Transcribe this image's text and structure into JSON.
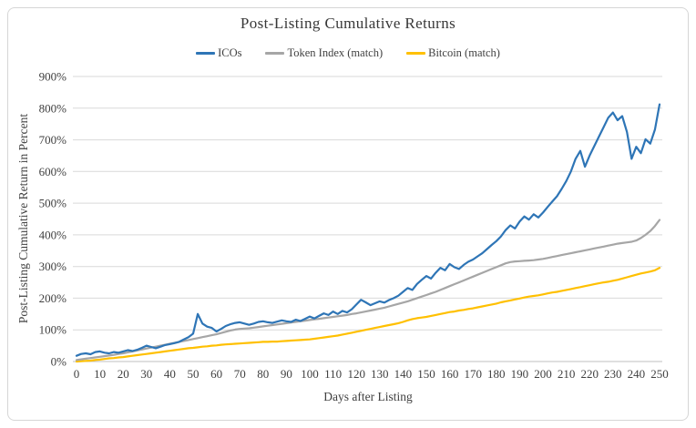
{
  "chart_data": {
    "type": "line",
    "title": "Post-Listing Cumulative Returns",
    "xlabel": "Days after Listing",
    "ylabel": "Post-Listing Cumulative Return in Percent",
    "xlim": [
      0,
      250
    ],
    "ylim": [
      0,
      900
    ],
    "grid": "horizontal-only",
    "legend_position": "top-center",
    "colors": {
      "icos": "#2e75b6",
      "token_index": "#a6a6a6",
      "bitcoin": "#ffc000",
      "gridline": "#d9d9d9",
      "axis_line": "#bfbfbf",
      "text": "#404040",
      "frame_border": "#d6d6d6"
    },
    "x_ticks": {
      "values": [
        0,
        10,
        20,
        30,
        40,
        50,
        60,
        70,
        80,
        90,
        100,
        110,
        120,
        130,
        140,
        150,
        160,
        170,
        180,
        190,
        200,
        210,
        220,
        230,
        240,
        250
      ],
      "labels": [
        "0",
        "10",
        "20",
        "30",
        "40",
        "50",
        "60",
        "70",
        "80",
        "90",
        "100",
        "110",
        "120",
        "130",
        "140",
        "150",
        "160",
        "170",
        "180",
        "190",
        "200",
        "210",
        "220",
        "230",
        "240",
        "250"
      ]
    },
    "y_ticks": {
      "values": [
        0,
        100,
        200,
        300,
        400,
        500,
        600,
        700,
        800,
        900
      ],
      "labels": [
        "0%",
        "100%",
        "200%",
        "300%",
        "400%",
        "500%",
        "600%",
        "700%",
        "800%",
        "900%"
      ]
    },
    "x": [
      0,
      2,
      4,
      6,
      8,
      10,
      12,
      14,
      16,
      18,
      20,
      22,
      24,
      26,
      28,
      30,
      32,
      34,
      36,
      38,
      40,
      42,
      44,
      46,
      48,
      50,
      52,
      54,
      56,
      58,
      60,
      62,
      64,
      66,
      68,
      70,
      72,
      74,
      76,
      78,
      80,
      82,
      84,
      86,
      88,
      90,
      92,
      94,
      96,
      98,
      100,
      102,
      104,
      106,
      108,
      110,
      112,
      114,
      116,
      118,
      120,
      122,
      124,
      126,
      128,
      130,
      132,
      134,
      136,
      138,
      140,
      142,
      144,
      146,
      148,
      150,
      152,
      154,
      156,
      158,
      160,
      162,
      164,
      166,
      168,
      170,
      172,
      174,
      176,
      178,
      180,
      182,
      184,
      186,
      188,
      190,
      192,
      194,
      196,
      198,
      200,
      202,
      204,
      206,
      208,
      210,
      212,
      214,
      216,
      218,
      220,
      222,
      224,
      226,
      228,
      230,
      232,
      234,
      236,
      238,
      240,
      242,
      244,
      246,
      248,
      250
    ],
    "series": [
      {
        "id": "icos",
        "name": "ICOs",
        "color": "#2e75b6",
        "values": [
          18,
          24,
          26,
          23,
          30,
          32,
          28,
          26,
          30,
          28,
          32,
          36,
          33,
          37,
          43,
          50,
          46,
          42,
          47,
          52,
          55,
          58,
          62,
          70,
          77,
          88,
          150,
          120,
          110,
          106,
          95,
          103,
          112,
          118,
          122,
          124,
          120,
          116,
          120,
          125,
          127,
          124,
          122,
          126,
          130,
          127,
          125,
          132,
          128,
          135,
          142,
          136,
          144,
          152,
          147,
          158,
          150,
          160,
          155,
          165,
          180,
          195,
          187,
          178,
          184,
          190,
          186,
          194,
          200,
          208,
          220,
          232,
          226,
          245,
          258,
          270,
          262,
          280,
          296,
          288,
          308,
          298,
          292,
          305,
          315,
          322,
          332,
          342,
          355,
          368,
          380,
          395,
          415,
          430,
          420,
          442,
          458,
          448,
          465,
          455,
          470,
          488,
          505,
          522,
          545,
          570,
          600,
          640,
          665,
          615,
          650,
          680,
          710,
          740,
          770,
          786,
          762,
          775,
          725,
          640,
          678,
          658,
          702,
          688,
          732,
          812
        ]
      },
      {
        "id": "token-index",
        "name": "Token Index (match)",
        "color": "#a6a6a6",
        "values": [
          5,
          7,
          9,
          11,
          13,
          15,
          17,
          19,
          21,
          24,
          26,
          29,
          32,
          35,
          38,
          41,
          44,
          47,
          50,
          53,
          56,
          59,
          62,
          65,
          68,
          71,
          74,
          77,
          80,
          83,
          86,
          90,
          94,
          98,
          101,
          103,
          104,
          105,
          107,
          109,
          111,
          113,
          115,
          117,
          119,
          121,
          123,
          125,
          127,
          129,
          131,
          133,
          135,
          137,
          139,
          141,
          143,
          145,
          147,
          150,
          152,
          155,
          158,
          161,
          164,
          167,
          170,
          174,
          178,
          182,
          186,
          190,
          195,
          200,
          205,
          210,
          215,
          220,
          226,
          232,
          238,
          244,
          250,
          256,
          262,
          268,
          274,
          280,
          286,
          292,
          298,
          304,
          310,
          314,
          316,
          317,
          318,
          319,
          320,
          322,
          324,
          327,
          330,
          333,
          336,
          339,
          342,
          345,
          348,
          351,
          354,
          357,
          360,
          363,
          366,
          369,
          372,
          374,
          376,
          378,
          382,
          390,
          400,
          412,
          428,
          447
        ]
      },
      {
        "id": "bitcoin",
        "name": "Bitcoin (match)",
        "color": "#ffc000",
        "values": [
          0,
          1,
          2,
          3,
          5,
          6,
          8,
          10,
          11,
          13,
          14,
          16,
          18,
          20,
          22,
          24,
          26,
          28,
          30,
          32,
          34,
          36,
          38,
          40,
          42,
          43,
          45,
          47,
          48,
          50,
          51,
          53,
          54,
          55,
          56,
          57,
          58,
          59,
          60,
          61,
          62,
          62,
          63,
          63,
          64,
          65,
          66,
          67,
          68,
          69,
          70,
          72,
          74,
          76,
          78,
          80,
          82,
          85,
          88,
          91,
          94,
          97,
          100,
          103,
          106,
          109,
          112,
          115,
          118,
          121,
          125,
          130,
          134,
          137,
          139,
          141,
          144,
          147,
          150,
          153,
          156,
          158,
          161,
          163,
          166,
          168,
          171,
          174,
          177,
          180,
          183,
          187,
          190,
          193,
          196,
          199,
          202,
          205,
          207,
          209,
          212,
          215,
          218,
          220,
          223,
          226,
          229,
          232,
          235,
          238,
          241,
          244,
          247,
          250,
          252,
          255,
          258,
          262,
          266,
          270,
          274,
          278,
          281,
          284,
          288,
          296
        ]
      }
    ]
  }
}
